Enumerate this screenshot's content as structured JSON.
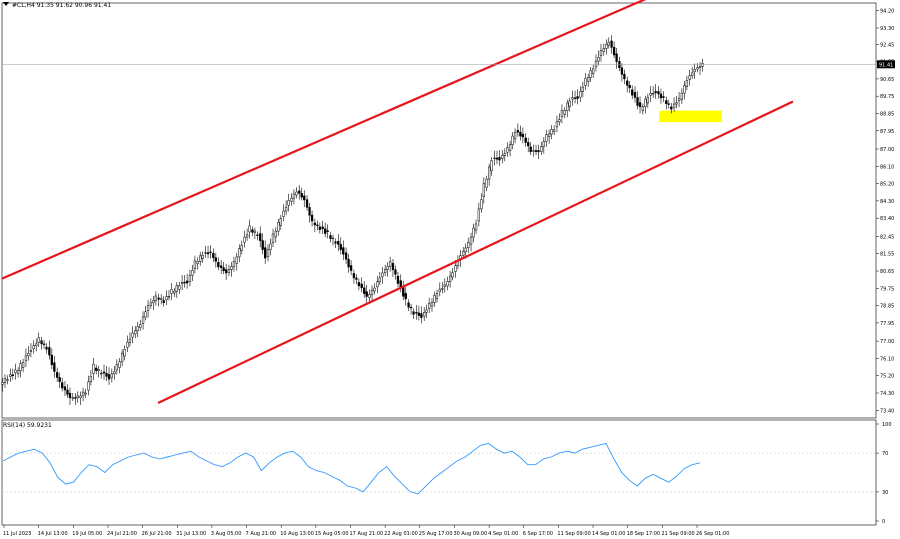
{
  "header": {
    "symbol_line": "#CL,H4  91.35 91.62 90.96 91.41"
  },
  "rsi_panel": {
    "label": "RSI(14) 59.9231"
  },
  "colors": {
    "channel": "#e8141c",
    "highlight": "#ffff00",
    "candle": "#000000",
    "rsi": "#3399ff",
    "grid": "#c0c0c0"
  },
  "chart_data": [
    {
      "type": "candlestick",
      "title": "#CL,H4",
      "current_price": "91.41",
      "y_ticks": [
        "94.20",
        "93.30",
        "92.45",
        "91.55",
        "90.65",
        "89.75",
        "88.85",
        "87.95",
        "87.00",
        "86.10",
        "85.20",
        "84.30",
        "83.40",
        "82.45",
        "81.55",
        "80.65",
        "79.75",
        "78.85",
        "77.95",
        "77.00",
        "76.10",
        "75.20",
        "74.30",
        "73.40"
      ],
      "x_ticks": [
        "11 Jul 2023",
        "14 Jul 13:00",
        "19 Jul 05:00",
        "24 Jul 21:00",
        "26 Jul 21:00",
        "31 Jul 13:00",
        "3 Aug 05:00",
        "7 Aug 21:00",
        "10 Aug 13:00",
        "15 Aug 05:00",
        "17 Aug 21:00",
        "22 Aug 01:00",
        "25 Aug 17:00",
        "30 Aug 09:00",
        "4 Sep 01:00",
        "6 Sep 17:00",
        "11 Sep 09:00",
        "14 Sep 01:00",
        "18 Sep 17:00",
        "21 Sep 09:00",
        "26 Sep 01:00"
      ],
      "ylim": [
        73.0,
        94.6
      ],
      "close_approx": [
        75.1,
        75.4,
        75.9,
        76.6,
        77.1,
        76.6,
        75.4,
        74.6,
        74.1,
        74.1,
        74.4,
        75.7,
        75.3,
        75.1,
        75.7,
        76.6,
        77.4,
        77.9,
        78.9,
        79.3,
        79.1,
        79.6,
        79.9,
        80.1,
        81.1,
        81.5,
        81.6,
        80.9,
        80.6,
        81.1,
        82.1,
        82.9,
        82.5,
        81.4,
        82.5,
        83.4,
        84.3,
        84.8,
        84.4,
        83.2,
        82.9,
        82.6,
        82.1,
        81.6,
        80.6,
        79.9,
        79.3,
        79.8,
        80.6,
        81.1,
        80.1,
        79.1,
        78.4,
        78.3,
        78.9,
        79.5,
        79.9,
        80.6,
        81.5,
        82.1,
        83.2,
        85.1,
        86.4,
        86.5,
        87.0,
        87.9,
        87.6,
        86.9,
        86.9,
        87.7,
        88.1,
        88.9,
        89.5,
        89.7,
        90.6,
        91.2,
        92.1,
        92.6,
        91.6,
        90.6,
        89.9,
        89.1,
        89.7,
        90.0,
        89.6,
        89.1,
        89.6,
        90.6,
        91.2,
        91.41
      ],
      "channel": {
        "upper_line": {
          "from": [
            "11 Jul 2023",
            80.3
          ],
          "to": [
            "18 Sep 17:00",
            94.4
          ]
        },
        "lower_line": {
          "from": [
            "26 Jul 21:00",
            73.4
          ],
          "to": [
            "26 Sep 01:00",
            87.1
          ]
        }
      },
      "support_zone": {
        "from": "21 Sep 09:00",
        "to": "26 Sep 01:00",
        "ymin": 88.4,
        "ymax": 89.0
      }
    },
    {
      "type": "line",
      "title": "RSI(14) 59.9231",
      "y_ticks": [
        "100",
        "70",
        "30",
        "0"
      ],
      "ylim": [
        0,
        100
      ],
      "values_approx": [
        62,
        66,
        70,
        72,
        74,
        70,
        60,
        45,
        38,
        40,
        50,
        58,
        56,
        50,
        58,
        62,
        66,
        68,
        70,
        66,
        64,
        66,
        68,
        70,
        72,
        66,
        62,
        58,
        56,
        60,
        66,
        70,
        66,
        52,
        60,
        66,
        70,
        72,
        66,
        56,
        52,
        50,
        46,
        42,
        36,
        34,
        30,
        40,
        50,
        56,
        46,
        38,
        30,
        28,
        36,
        44,
        50,
        56,
        62,
        66,
        72,
        78,
        80,
        74,
        70,
        72,
        66,
        58,
        58,
        64,
        66,
        70,
        72,
        70,
        74,
        76,
        78,
        80,
        64,
        50,
        42,
        36,
        44,
        48,
        44,
        40,
        46,
        54,
        58,
        60
      ]
    }
  ]
}
